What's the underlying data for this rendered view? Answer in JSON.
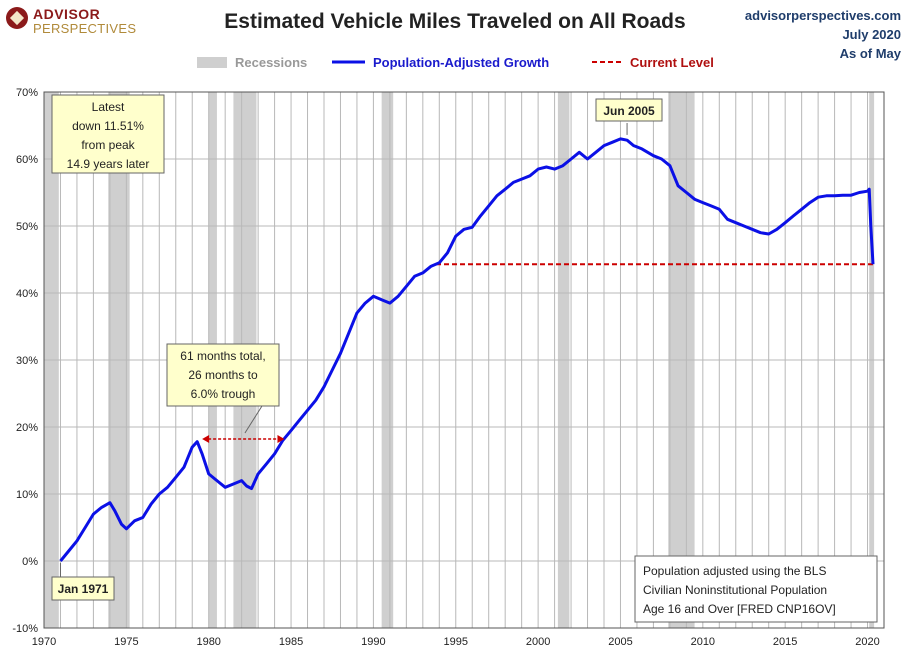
{
  "header": {
    "logo_line1": "ADVISOR",
    "logo_line2": "PERSPECTIVES",
    "source_site": "advisorperspectives.com",
    "source_date": "July 2020",
    "source_asof": "As of May"
  },
  "colors": {
    "series": "#0b10e6",
    "current_level": "#cc0000",
    "recession": "#cfcfcf",
    "grid": "#b8b8b8",
    "callout_fill": "#ffffcc"
  },
  "chart_data": {
    "type": "line",
    "title": "Estimated Vehicle Miles Traveled on All Roads",
    "ylim": [
      -10,
      70
    ],
    "xlim": [
      1970,
      2021
    ],
    "grid": "on",
    "legend_position": "top-center",
    "y_ticks": [
      "-10%",
      "0%",
      "10%",
      "20%",
      "30%",
      "40%",
      "50%",
      "60%",
      "70%"
    ],
    "y_tick_values": [
      -10,
      0,
      10,
      20,
      30,
      40,
      50,
      60,
      70
    ],
    "x_ticks": [
      "1970",
      "1975",
      "1980",
      "1985",
      "1990",
      "1995",
      "2000",
      "2005",
      "2010",
      "2015",
      "2020"
    ],
    "x_tick_values": [
      1970,
      1975,
      1980,
      1985,
      1990,
      1995,
      2000,
      2005,
      2010,
      2015,
      2020
    ],
    "legend": {
      "recessions": "Recessions",
      "series": "Population-Adjusted Growth",
      "current": "Current Level"
    },
    "recessions": [
      [
        1970.0,
        1970.9
      ],
      [
        1973.9,
        1975.2
      ],
      [
        1980.0,
        1980.5
      ],
      [
        1981.5,
        1982.9
      ],
      [
        1990.5,
        1991.2
      ],
      [
        2001.2,
        2001.9
      ],
      [
        2007.9,
        2009.5
      ],
      [
        2020.1,
        2020.4
      ]
    ],
    "current_level": {
      "value": 44.3,
      "x_start": 1993.8,
      "x_end": 2020.33
    },
    "series": [
      {
        "name": "Population-Adjusted Growth",
        "x": [
          1971.0,
          1971.5,
          1972.0,
          1972.5,
          1973.0,
          1973.5,
          1974.0,
          1974.3,
          1974.7,
          1975.0,
          1975.5,
          1976.0,
          1976.5,
          1977.0,
          1977.5,
          1978.0,
          1978.5,
          1979.0,
          1979.3,
          1979.6,
          1980.0,
          1980.5,
          1981.0,
          1981.5,
          1982.0,
          1982.3,
          1982.6,
          1983.0,
          1983.5,
          1984.0,
          1984.5,
          1985.0,
          1985.5,
          1986.0,
          1986.5,
          1987.0,
          1987.5,
          1988.0,
          1988.5,
          1989.0,
          1989.5,
          1990.0,
          1990.5,
          1991.0,
          1991.5,
          1992.0,
          1992.5,
          1993.0,
          1993.5,
          1994.0,
          1994.5,
          1995.0,
          1995.5,
          1996.0,
          1996.5,
          1997.0,
          1997.5,
          1998.0,
          1998.5,
          1999.0,
          1999.5,
          2000.0,
          2000.5,
          2001.0,
          2001.5,
          2002.0,
          2002.5,
          2003.0,
          2003.5,
          2004.0,
          2004.5,
          2005.0,
          2005.4,
          2005.8,
          2006.3,
          2007.0,
          2007.5,
          2008.0,
          2008.5,
          2009.0,
          2009.5,
          2010.0,
          2010.5,
          2011.0,
          2011.5,
          2012.0,
          2012.5,
          2013.0,
          2013.5,
          2014.0,
          2014.5,
          2015.0,
          2015.5,
          2016.0,
          2016.5,
          2017.0,
          2017.5,
          2018.0,
          2018.5,
          2019.0,
          2019.5,
          2020.0,
          2020.1,
          2020.2,
          2020.33
        ],
        "values": [
          0.0,
          1.5,
          3.0,
          5.0,
          7.0,
          8.0,
          8.7,
          7.5,
          5.5,
          4.8,
          6.0,
          6.5,
          8.5,
          10.0,
          11.0,
          12.5,
          14.0,
          17.0,
          17.8,
          16.0,
          13.0,
          12.0,
          11.0,
          11.5,
          12.0,
          11.2,
          10.8,
          13.0,
          14.5,
          16.0,
          18.0,
          19.5,
          21.0,
          22.5,
          24.0,
          26.0,
          28.5,
          31.0,
          34.0,
          37.0,
          38.5,
          39.5,
          39.0,
          38.5,
          39.5,
          41.0,
          42.5,
          43.0,
          44.0,
          44.5,
          46.0,
          48.5,
          49.5,
          49.8,
          51.5,
          53.0,
          54.5,
          55.5,
          56.5,
          57.0,
          57.5,
          58.5,
          58.8,
          58.5,
          59.0,
          60.0,
          61.0,
          60.0,
          61.0,
          62.0,
          62.5,
          63.0,
          62.8,
          62.0,
          61.5,
          60.5,
          60.0,
          59.0,
          56.0,
          55.0,
          54.0,
          53.5,
          53.0,
          52.5,
          51.0,
          50.5,
          50.0,
          49.5,
          49.0,
          48.8,
          49.5,
          50.5,
          51.5,
          52.5,
          53.5,
          54.3,
          54.5,
          54.5,
          54.6,
          54.6,
          55.0,
          55.2,
          55.5,
          50.0,
          44.3
        ]
      }
    ],
    "annotations": {
      "latest": [
        "Latest",
        "down 11.51%",
        "from peak",
        "14.9 years later"
      ],
      "peak": "Jun 2005",
      "start": "Jan 1971",
      "trough": [
        "61 months total,",
        "26 months to",
        "6.0% trough"
      ],
      "note": [
        "Population adjusted using the BLS",
        "Civilian Noninstitutional Population",
        "Age 16 and Over  [FRED CNP16OV]"
      ]
    },
    "annotation_points": {
      "peak": {
        "x": 2005.4,
        "y": 63.0
      },
      "start": {
        "x": 1971.0,
        "y": 0.0
      },
      "trough_span": [
        1979.6,
        1984.6
      ]
    }
  }
}
